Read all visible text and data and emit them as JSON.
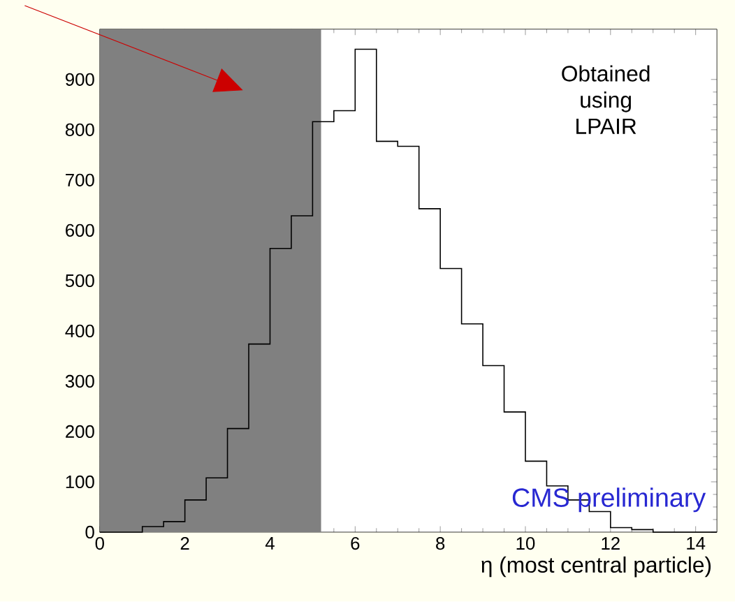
{
  "chart_data": {
    "type": "histogram",
    "xlabel": "η (most central particle)",
    "bins": [
      0,
      0.5,
      1,
      1.5,
      2,
      2.5,
      3,
      3.5,
      4,
      4.5,
      5,
      5.5,
      6,
      6.5,
      7,
      7.5,
      8,
      8.5,
      9,
      9.5,
      10,
      10.5,
      11,
      11.5,
      12,
      12.5,
      13,
      13.5,
      14,
      14.5
    ],
    "values": [
      0,
      0,
      11,
      21,
      64,
      108,
      206,
      374,
      564,
      629,
      816,
      838,
      960,
      777,
      767,
      643,
      524,
      414,
      331,
      239,
      141,
      92,
      64,
      41,
      9,
      5,
      0,
      0,
      0
    ],
    "color": "#000000",
    "xlim": [
      0,
      14.5
    ],
    "ylim": [
      0,
      1000
    ],
    "xticks": [
      0,
      2,
      4,
      6,
      8,
      10,
      12,
      14
    ],
    "yticks": [
      0,
      100,
      200,
      300,
      400,
      500,
      600,
      700,
      800,
      900
    ],
    "bands": [
      {
        "axis": "x",
        "from": 0,
        "to": 5.2,
        "color": "#808080"
      }
    ],
    "annotations": [
      "Obtained using LPAIR",
      "CMS preliminary"
    ],
    "grid": false
  }
}
